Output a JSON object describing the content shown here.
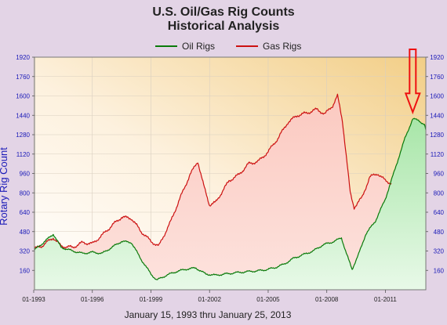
{
  "chart_data": {
    "type": "area",
    "title": "U.S. Oil/Gas Rig Counts",
    "subtitle": "Historical Analysis",
    "ylabel": "Rotary Rig Count",
    "xlabel": "January 15, 1993 thru January 25, 2013",
    "ylim": [
      0,
      1920
    ],
    "yticks": [
      160,
      320,
      480,
      640,
      800,
      960,
      1120,
      1280,
      1440,
      1600,
      1760,
      1920
    ],
    "xlim": [
      "1993-01-15",
      "2013-01-25"
    ],
    "xticks": [
      {
        "label": "01-1993",
        "year": 1993.0
      },
      {
        "label": "01-1996",
        "year": 1996.0
      },
      {
        "label": "01-1999",
        "year": 1999.0
      },
      {
        "label": "01-2002",
        "year": 2002.0
      },
      {
        "label": "01-2005",
        "year": 2005.0
      },
      {
        "label": "01-2008",
        "year": 2008.0
      },
      {
        "label": "01-2011",
        "year": 2011.0
      }
    ],
    "grid": true,
    "legend": "top-center",
    "series": [
      {
        "name": "Oil Rigs",
        "color": "#0a7a0a",
        "fill": "#c8efc8",
        "points": [
          [
            1993.05,
            330
          ],
          [
            1993.5,
            390
          ],
          [
            1994.0,
            460
          ],
          [
            1994.4,
            350
          ],
          [
            1995.0,
            320
          ],
          [
            1995.5,
            300
          ],
          [
            1996.0,
            310
          ],
          [
            1996.5,
            300
          ],
          [
            1997.0,
            350
          ],
          [
            1997.5,
            400
          ],
          [
            1998.0,
            390
          ],
          [
            1998.5,
            250
          ],
          [
            1999.0,
            130
          ],
          [
            1999.3,
            80
          ],
          [
            1999.8,
            120
          ],
          [
            2000.3,
            150
          ],
          [
            2000.8,
            170
          ],
          [
            2001.3,
            180
          ],
          [
            2001.8,
            130
          ],
          [
            2002.3,
            120
          ],
          [
            2002.8,
            130
          ],
          [
            2003.3,
            140
          ],
          [
            2004.0,
            150
          ],
          [
            2004.7,
            160
          ],
          [
            2005.3,
            180
          ],
          [
            2005.8,
            210
          ],
          [
            2006.3,
            260
          ],
          [
            2006.8,
            290
          ],
          [
            2007.3,
            320
          ],
          [
            2007.8,
            370
          ],
          [
            2008.4,
            400
          ],
          [
            2008.75,
            430
          ],
          [
            2009.0,
            300
          ],
          [
            2009.3,
            170
          ],
          [
            2009.6,
            280
          ],
          [
            2010.0,
            460
          ],
          [
            2010.5,
            570
          ],
          [
            2011.0,
            750
          ],
          [
            2011.5,
            1000
          ],
          [
            2012.0,
            1250
          ],
          [
            2012.4,
            1410
          ],
          [
            2012.7,
            1400
          ],
          [
            2013.0,
            1360
          ],
          [
            2013.07,
            1320
          ]
        ]
      },
      {
        "name": "Gas Rigs",
        "color": "#cc1111",
        "fill": "#f8cfcf",
        "points": [
          [
            1993.05,
            340
          ],
          [
            1993.4,
            360
          ],
          [
            1994.0,
            430
          ],
          [
            1994.4,
            360
          ],
          [
            1995.0,
            350
          ],
          [
            1995.5,
            390
          ],
          [
            1996.0,
            380
          ],
          [
            1996.5,
            450
          ],
          [
            1997.0,
            530
          ],
          [
            1997.5,
            600
          ],
          [
            1998.0,
            590
          ],
          [
            1998.5,
            480
          ],
          [
            1999.0,
            400
          ],
          [
            1999.4,
            360
          ],
          [
            2000.0,
            560
          ],
          [
            2000.5,
            760
          ],
          [
            2001.0,
            950
          ],
          [
            2001.4,
            1060
          ],
          [
            2001.7,
            860
          ],
          [
            2002.0,
            700
          ],
          [
            2002.3,
            720
          ],
          [
            2003.0,
            900
          ],
          [
            2003.5,
            950
          ],
          [
            2004.0,
            1040
          ],
          [
            2004.5,
            1060
          ],
          [
            2005.0,
            1140
          ],
          [
            2005.5,
            1250
          ],
          [
            2006.0,
            1380
          ],
          [
            2006.5,
            1440
          ],
          [
            2007.0,
            1460
          ],
          [
            2007.5,
            1490
          ],
          [
            2007.9,
            1450
          ],
          [
            2008.3,
            1520
          ],
          [
            2008.55,
            1600
          ],
          [
            2008.8,
            1400
          ],
          [
            2009.2,
            800
          ],
          [
            2009.4,
            680
          ],
          [
            2009.8,
            760
          ],
          [
            2010.2,
            930
          ],
          [
            2010.6,
            960
          ],
          [
            2011.0,
            900
          ],
          [
            2011.3,
            880
          ]
        ]
      }
    ],
    "annotations": [
      {
        "type": "arrow",
        "color": "#ee1111",
        "points_to": [
          2012.4,
          1440
        ]
      }
    ]
  }
}
